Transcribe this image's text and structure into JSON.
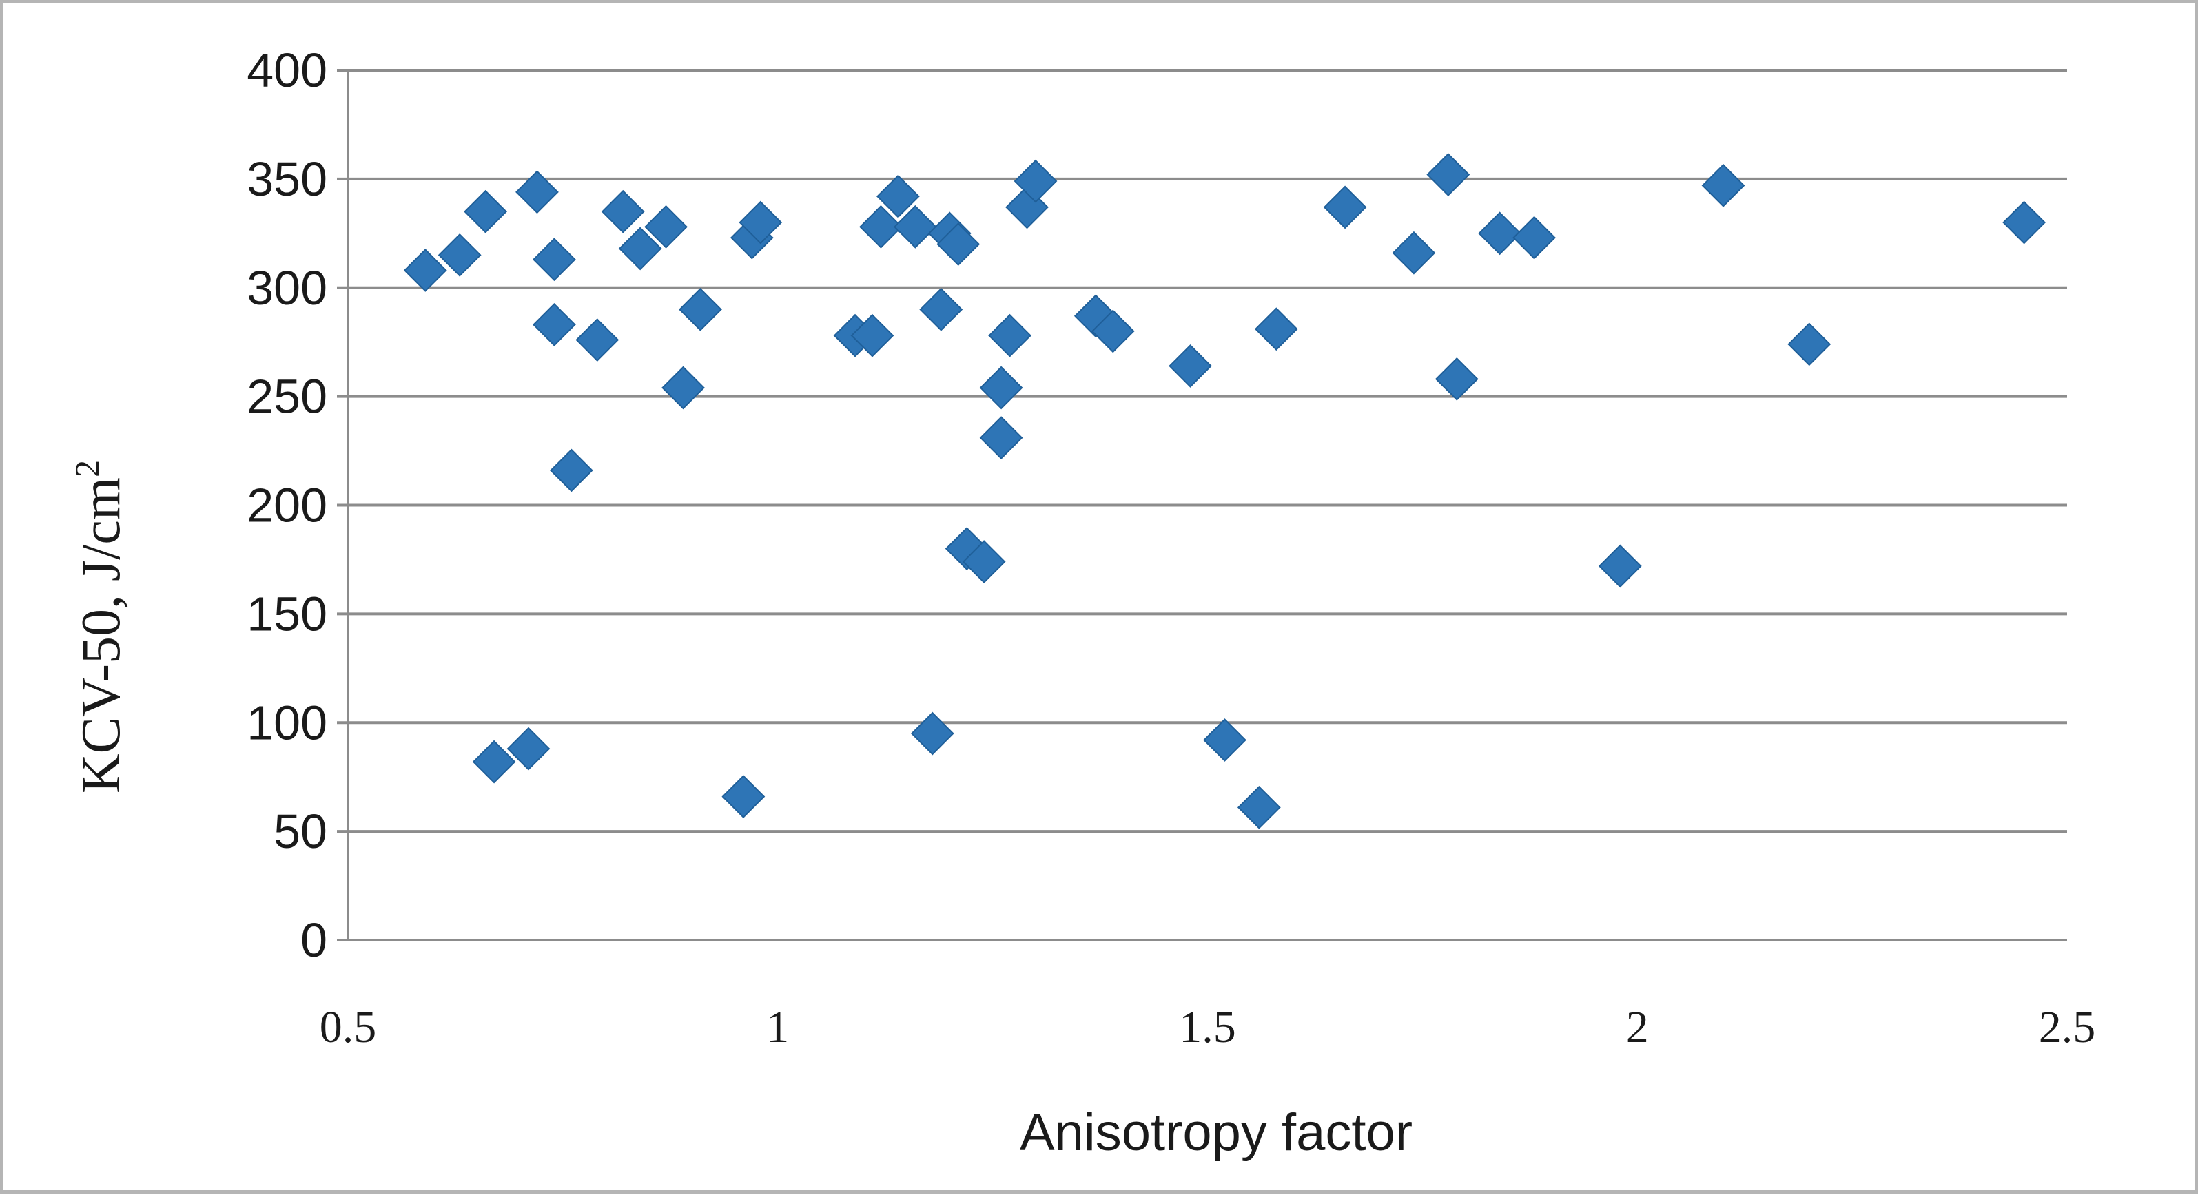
{
  "chart_data": {
    "type": "scatter",
    "xlabel": "Anisotropy factor",
    "ylabel": "KCV-50, J/cm",
    "ylabel_superscript": "2",
    "xlim": [
      0.5,
      2.5
    ],
    "ylim": [
      0,
      400
    ],
    "xticks": [
      "0.5",
      "1",
      "1.5",
      "2",
      "2.5"
    ],
    "yticks": [
      "0",
      "50",
      "100",
      "150",
      "200",
      "250",
      "300",
      "350",
      "400"
    ],
    "grid": "horizontal",
    "legend": "none",
    "marker": "diamond",
    "marker_color": "#2E75B6",
    "series": [
      {
        "x": [
          0.59,
          0.63,
          0.66,
          0.67,
          0.71,
          0.72,
          0.74,
          0.74,
          0.76,
          0.79,
          0.82,
          0.84,
          0.87,
          0.89,
          0.91,
          0.96,
          0.97,
          0.98,
          1.09,
          1.11,
          1.12,
          1.14,
          1.16,
          1.18,
          1.19,
          1.2,
          1.21,
          1.22,
          1.24,
          1.26,
          1.26,
          1.27,
          1.29,
          1.3,
          1.37,
          1.39,
          1.48,
          1.52,
          1.56,
          1.58,
          1.66,
          1.74,
          1.78,
          1.79,
          1.84,
          1.88,
          1.98,
          2.1,
          2.2,
          2.45
        ],
        "y": [
          308,
          315,
          335,
          82,
          88,
          344,
          313,
          283,
          216,
          276,
          335,
          318,
          328,
          254,
          290,
          66,
          323,
          330,
          278,
          278,
          328,
          342,
          328,
          95,
          290,
          325,
          320,
          180,
          174,
          254,
          231,
          278,
          337,
          349,
          287,
          280,
          264,
          92,
          61,
          281,
          337,
          316,
          352,
          258,
          325,
          323,
          172,
          347,
          274,
          330
        ]
      }
    ]
  }
}
